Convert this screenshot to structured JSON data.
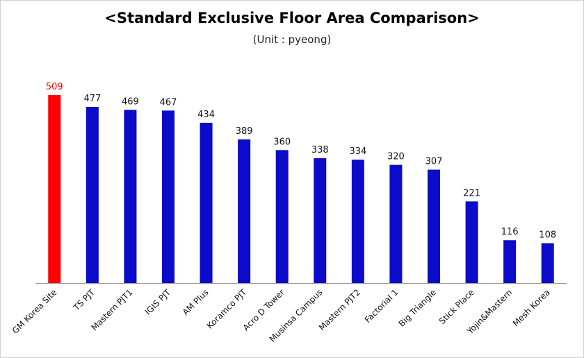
{
  "chart_data": {
    "type": "bar",
    "title": "<Standard Exclusive Floor Area Comparison>",
    "subtitle": "(Unit : pyeong)",
    "categories": [
      "GM Korea Site",
      "TS PJT",
      "Mastern PJT1",
      "IGIS PJT",
      "AM Plus",
      "Koramco PJT",
      "Acro D Tower",
      "Musinsa Campus",
      "Mastern PJT2",
      "Factorial 1",
      "Big Triangle",
      "Stick Place",
      "Yojin&Mastern",
      "Mesh Korea"
    ],
    "values": [
      509,
      477,
      469,
      467,
      434,
      389,
      360,
      338,
      334,
      320,
      307,
      221,
      116,
      108
    ],
    "ylim": [
      0,
      509
    ],
    "highlight_index": 0,
    "colors": {
      "bar": "#0b0bc9",
      "highlight": "#ff0000",
      "label": "#111111",
      "highlight_label": "#ff0000"
    },
    "grid": false,
    "legend": "none"
  }
}
